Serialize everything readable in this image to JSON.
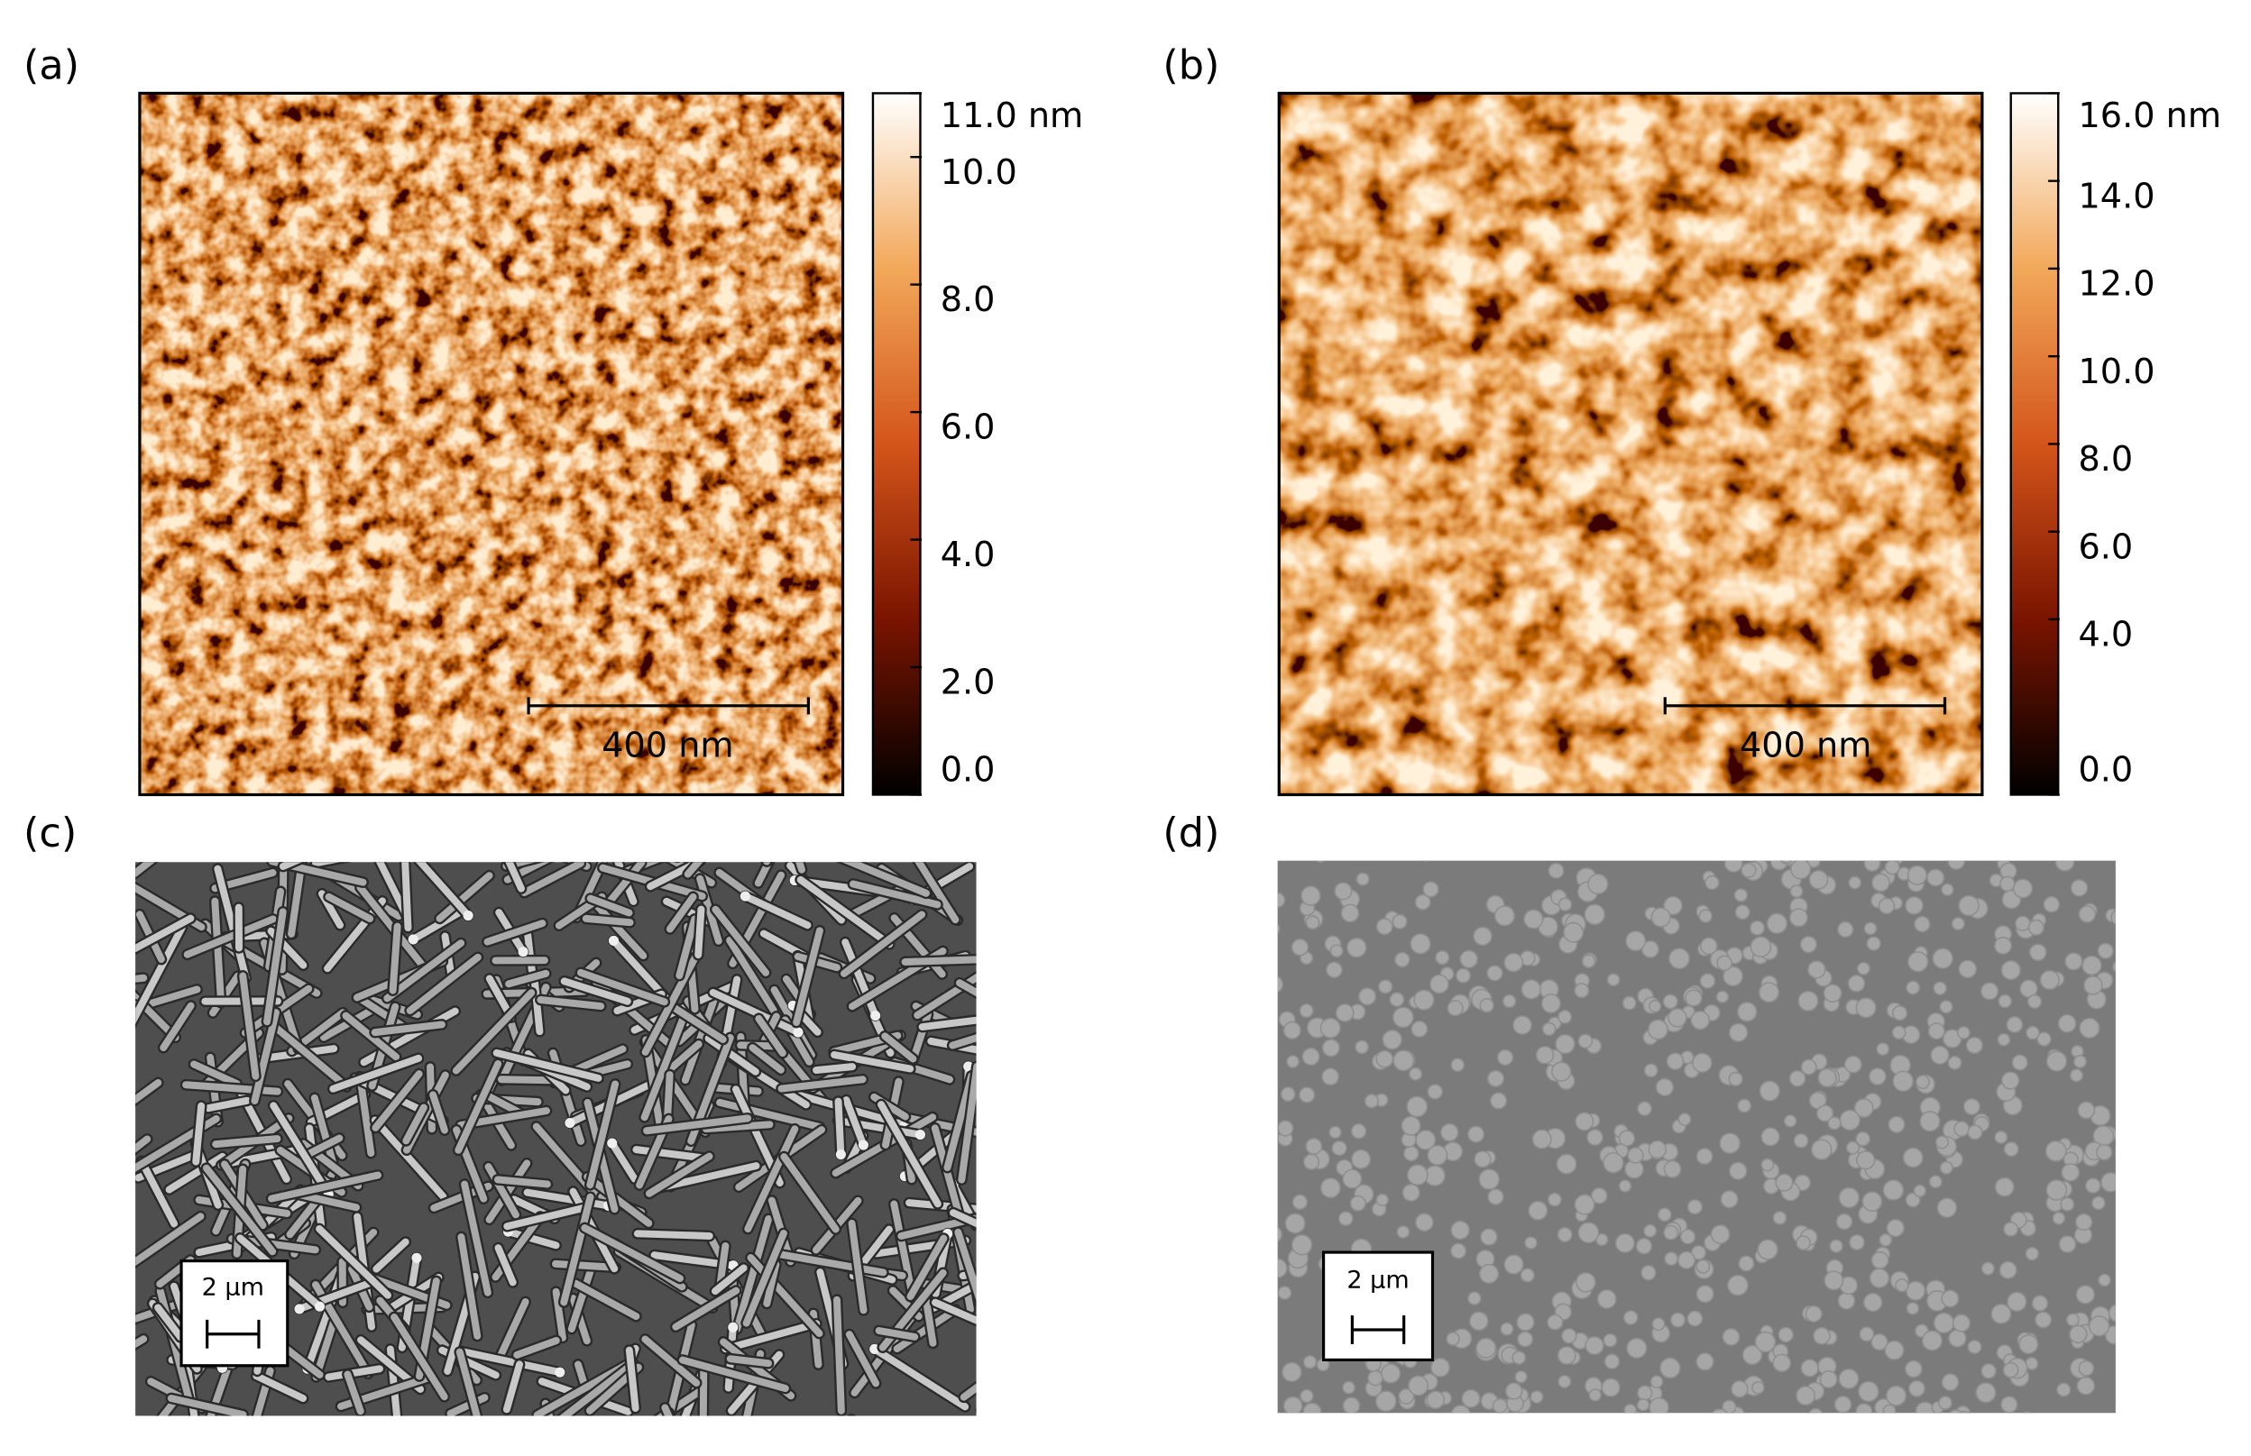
{
  "panels": [
    {
      "label": "(a)",
      "scale_bar": "400 nm",
      "colorbar": {
        "lim": [
          0,
          11
        ],
        "ticks": [
          {
            "value": 11,
            "label": "11.0 nm"
          },
          {
            "value": 10,
            "label": "10.0"
          },
          {
            "value": 8,
            "label": "8.0"
          },
          {
            "value": 6,
            "label": "6.0"
          },
          {
            "value": 4,
            "label": "4.0"
          },
          {
            "value": 2,
            "label": "2.0"
          },
          {
            "value": 0,
            "label": "0.0"
          }
        ]
      }
    },
    {
      "label": "(b)",
      "scale_bar": "400 nm",
      "colorbar": {
        "lim": [
          0,
          16
        ],
        "ticks": [
          {
            "value": 16,
            "label": "16.0 nm"
          },
          {
            "value": 14,
            "label": "14.0"
          },
          {
            "value": 12,
            "label": "12.0"
          },
          {
            "value": 10,
            "label": "10.0"
          },
          {
            "value": 8,
            "label": "8.0"
          },
          {
            "value": 6,
            "label": "6.0"
          },
          {
            "value": 4,
            "label": "4.0"
          },
          {
            "value": 0,
            "label": "0.0"
          }
        ]
      }
    },
    {
      "label": "(c)",
      "scale_bar": "2 µm"
    },
    {
      "label": "(d)",
      "scale_bar": "2 µm"
    }
  ]
}
